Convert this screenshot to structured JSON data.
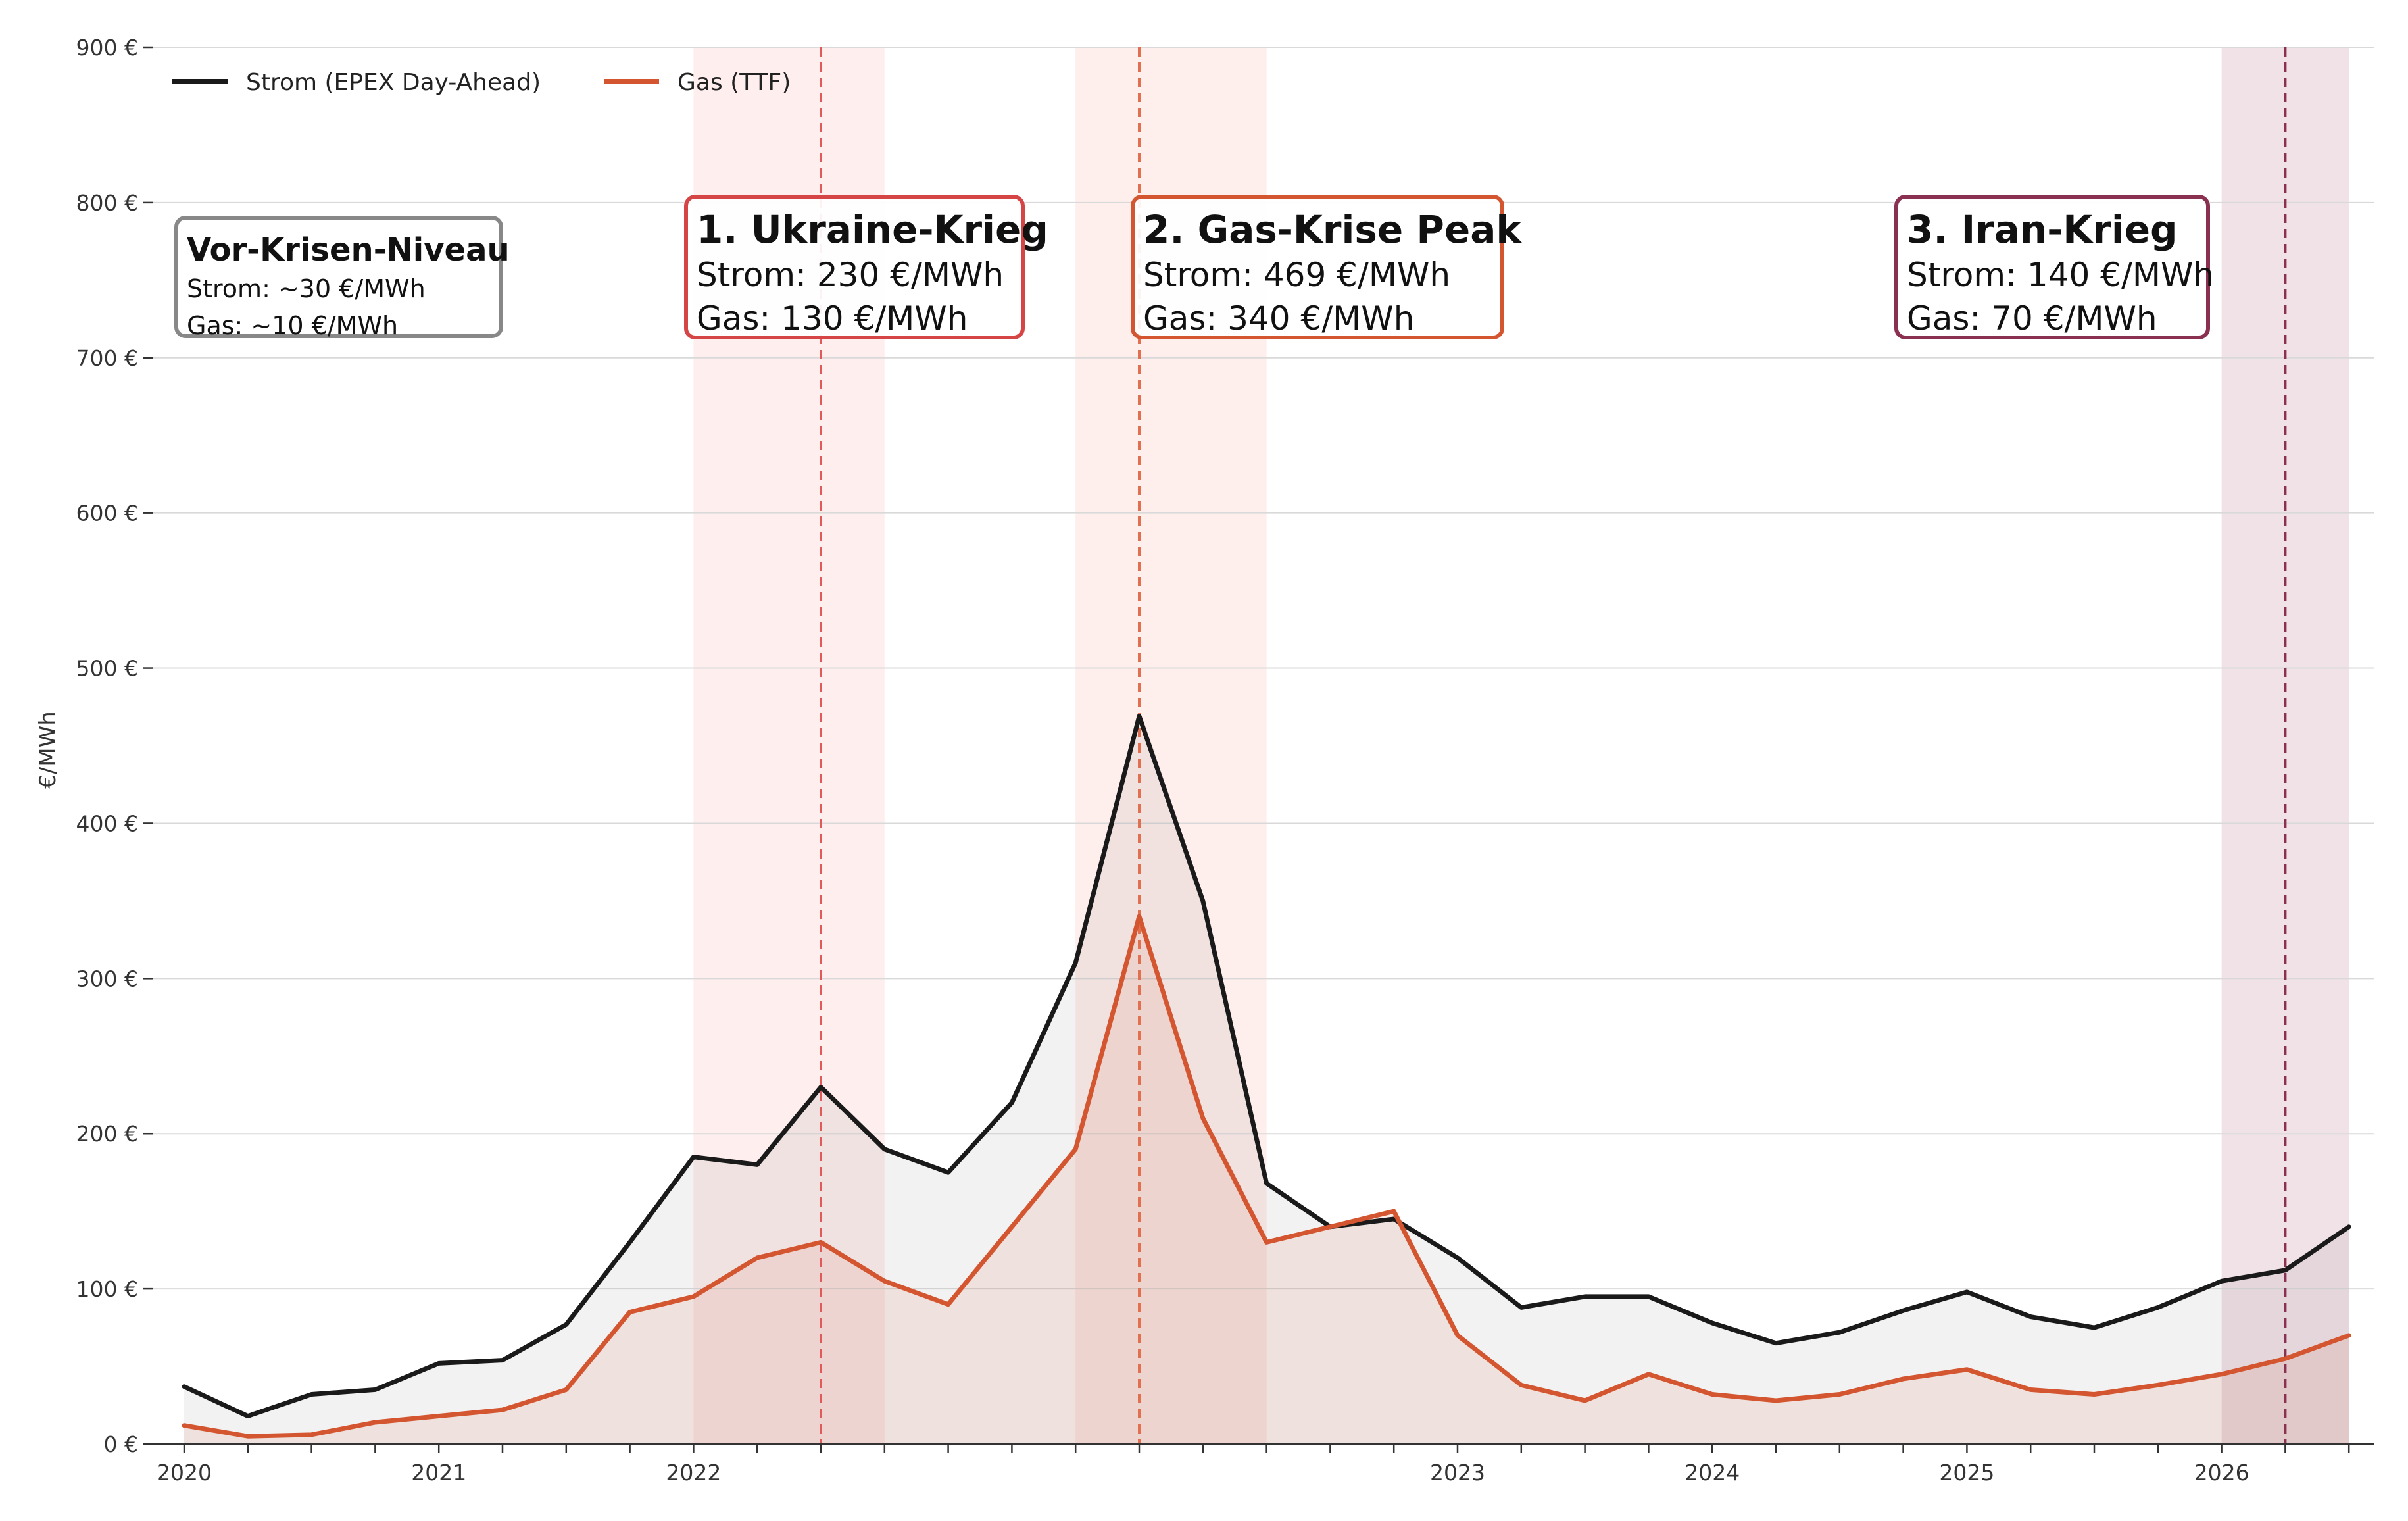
{
  "chart_data": {
    "type": "line",
    "title": "",
    "xlabel": "",
    "ylabel": "€/MWh",
    "ylim": [
      0,
      900
    ],
    "y_ticks": [
      0,
      100,
      200,
      300,
      400,
      500,
      600,
      700,
      800,
      900
    ],
    "y_tick_labels": [
      "0 €",
      "100 €",
      "200 €",
      "300 €",
      "400 €",
      "500 €",
      "600 €",
      "700 €",
      "800 €",
      "900 €"
    ],
    "x_tick_labels": [
      {
        "label": "2020",
        "index": 0
      },
      {
        "label": "2021",
        "index": 4
      },
      {
        "label": "2022",
        "index": 8
      },
      {
        "label": "2023",
        "index": 20
      },
      {
        "label": "2024",
        "index": 24
      },
      {
        "label": "2025",
        "index": 28
      },
      {
        "label": "2026",
        "index": 32
      }
    ],
    "point_count": 35,
    "grid": true,
    "legend_position": "top-left",
    "series": [
      {
        "name": "Strom (EPEX Day-Ahead)",
        "color": "#1a1a1a",
        "values": [
          37,
          18,
          32,
          35,
          52,
          54,
          77,
          130,
          185,
          180,
          230,
          190,
          175,
          220,
          310,
          469,
          350,
          168,
          140,
          145,
          120,
          88,
          95,
          95,
          78,
          65,
          72,
          86,
          98,
          82,
          75,
          88,
          105,
          112,
          140
        ]
      },
      {
        "name": "Gas (TTF)",
        "color": "#d35630",
        "values": [
          12,
          5,
          6,
          14,
          18,
          22,
          35,
          85,
          95,
          120,
          130,
          105,
          90,
          140,
          190,
          340,
          210,
          130,
          140,
          150,
          70,
          38,
          28,
          45,
          32,
          28,
          32,
          42,
          48,
          35,
          32,
          38,
          45,
          55,
          70
        ]
      }
    ],
    "event_bands": [
      {
        "start": 8,
        "end": 11,
        "line": 10,
        "fill": "#fde8e8",
        "line_color": "#e05a5a"
      },
      {
        "start": 14,
        "end": 17,
        "line": 15,
        "fill": "#fdeae6",
        "line_color": "#e07050"
      },
      {
        "start": 32,
        "end": 34,
        "line": 33,
        "fill": "#ecd8df",
        "line_color": "#8a3050"
      }
    ],
    "annotations": [
      {
        "title": "1. Ukraine-Krieg",
        "lines": [
          "Strom: 230 €/MWh",
          "Gas: 130 €/MWh"
        ],
        "border": "#d64545"
      },
      {
        "title": "2. Gas-Krise Peak",
        "lines": [
          "Strom: 469 €/MWh",
          "Gas: 340 €/MWh"
        ],
        "border": "#d35630"
      },
      {
        "title": "3. Iran-Krieg",
        "lines": [
          "Strom: 140 €/MWh",
          "Gas: 70 €/MWh"
        ],
        "border": "#8a3050"
      }
    ],
    "pre_crisis": {
      "title": "Vor-Krisen-Niveau",
      "lines": [
        "Strom: ~30 €/MWh",
        "Gas: ~10 €/MWh"
      ],
      "border": "#888888"
    }
  }
}
